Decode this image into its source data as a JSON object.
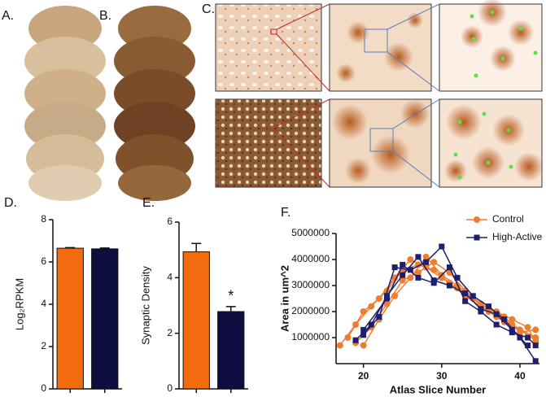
{
  "panel_labels": [
    "A.",
    "B.",
    "C."
  ],
  "chart_data": [
    {
      "type": "bar",
      "label": "D.",
      "ylabel": "Log₂RPKM",
      "categories": [
        null,
        null
      ],
      "values": [
        6.65,
        6.62
      ],
      "errors": [
        0.03,
        0.04
      ],
      "colors": [
        "#f26b0f",
        "#0d0d40"
      ],
      "ylim": [
        0,
        8
      ],
      "yticks": [
        0,
        2,
        4,
        6,
        8
      ]
    },
    {
      "type": "bar",
      "label": "E.",
      "ylabel": "Synaptic Density",
      "categories": [
        null,
        null
      ],
      "values": [
        4.93,
        2.78
      ],
      "errors": [
        0.3,
        0.18
      ],
      "colors": [
        "#f26b0f",
        "#0d0d40"
      ],
      "annotation": "*",
      "ylim": [
        0,
        6
      ],
      "yticks": [
        0,
        2,
        4,
        6
      ]
    },
    {
      "type": "line",
      "label": "F.",
      "xlabel": "Atlas Slice Number",
      "ylabel": "Area in um^2",
      "xlim": [
        16.5,
        42.5
      ],
      "xticks": [
        20,
        30,
        40
      ],
      "ylim": [
        0,
        5000000
      ],
      "yticks": [
        1000000,
        2000000,
        3000000,
        4000000,
        5000000
      ],
      "legend": "upper right",
      "series": [
        {
          "name": "Control",
          "color": "#ef7d2f",
          "marker": "circle",
          "subjects": [
            {
              "x": [
                17,
                19,
                21,
                23,
                25,
                27,
                29,
                31,
                33,
                35,
                37,
                39,
                42
              ],
              "values": [
                700000,
                1500000,
                2200000,
                2800000,
                3600000,
                3800000,
                3600000,
                3100000,
                2600000,
                2200000,
                1800000,
                1500000,
                1000000
              ]
            },
            {
              "x": [
                18,
                20,
                22,
                24,
                26,
                28,
                30,
                32,
                34,
                36,
                38,
                40,
                42
              ],
              "values": [
                1000000,
                2000000,
                2500000,
                3300000,
                4000000,
                3700000,
                3300000,
                2900000,
                2500000,
                2100000,
                1800000,
                1200000,
                1300000
              ]
            },
            {
              "x": [
                19,
                21,
                23,
                25,
                27,
                29,
                31,
                33,
                35,
                37,
                39,
                41,
                42
              ],
              "values": [
                800000,
                1400000,
                2300000,
                3200000,
                3500000,
                3900000,
                3500000,
                2800000,
                2300000,
                2000000,
                1700000,
                1400000,
                800000
              ]
            },
            {
              "x": [
                20,
                22,
                24,
                26,
                28,
                30,
                32,
                34,
                36,
                38,
                40,
                42
              ],
              "values": [
                700000,
                1700000,
                2600000,
                3300000,
                4100000,
                3400000,
                3000000,
                2500000,
                2000000,
                1600000,
                1300000,
                900000
              ]
            }
          ]
        },
        {
          "name": "High-Active",
          "color": "#1c1f6e",
          "marker": "square",
          "subjects": [
            {
              "x": [
                20,
                22,
                24,
                26,
                28,
                30,
                32,
                34,
                36,
                38,
                40,
                42
              ],
              "values": [
                1100000,
                1800000,
                3700000,
                3600000,
                3900000,
                4500000,
                3300000,
                2600000,
                2200000,
                1700000,
                1000000,
                100000
              ]
            },
            {
              "x": [
                19,
                21,
                23,
                25,
                27,
                29,
                31,
                33,
                35,
                37,
                39,
                41
              ],
              "values": [
                900000,
                1500000,
                2600000,
                3400000,
                4100000,
                3200000,
                3000000,
                2700000,
                2100000,
                1900000,
                1300000,
                700000
              ]
            },
            {
              "x": [
                20,
                23,
                25,
                27,
                29,
                31,
                33,
                35,
                37,
                39,
                41,
                42
              ],
              "values": [
                1300000,
                2500000,
                3800000,
                3300000,
                3100000,
                3700000,
                2400000,
                2000000,
                1500000,
                1200000,
                1000000,
                700000
              ]
            }
          ]
        }
      ]
    }
  ]
}
